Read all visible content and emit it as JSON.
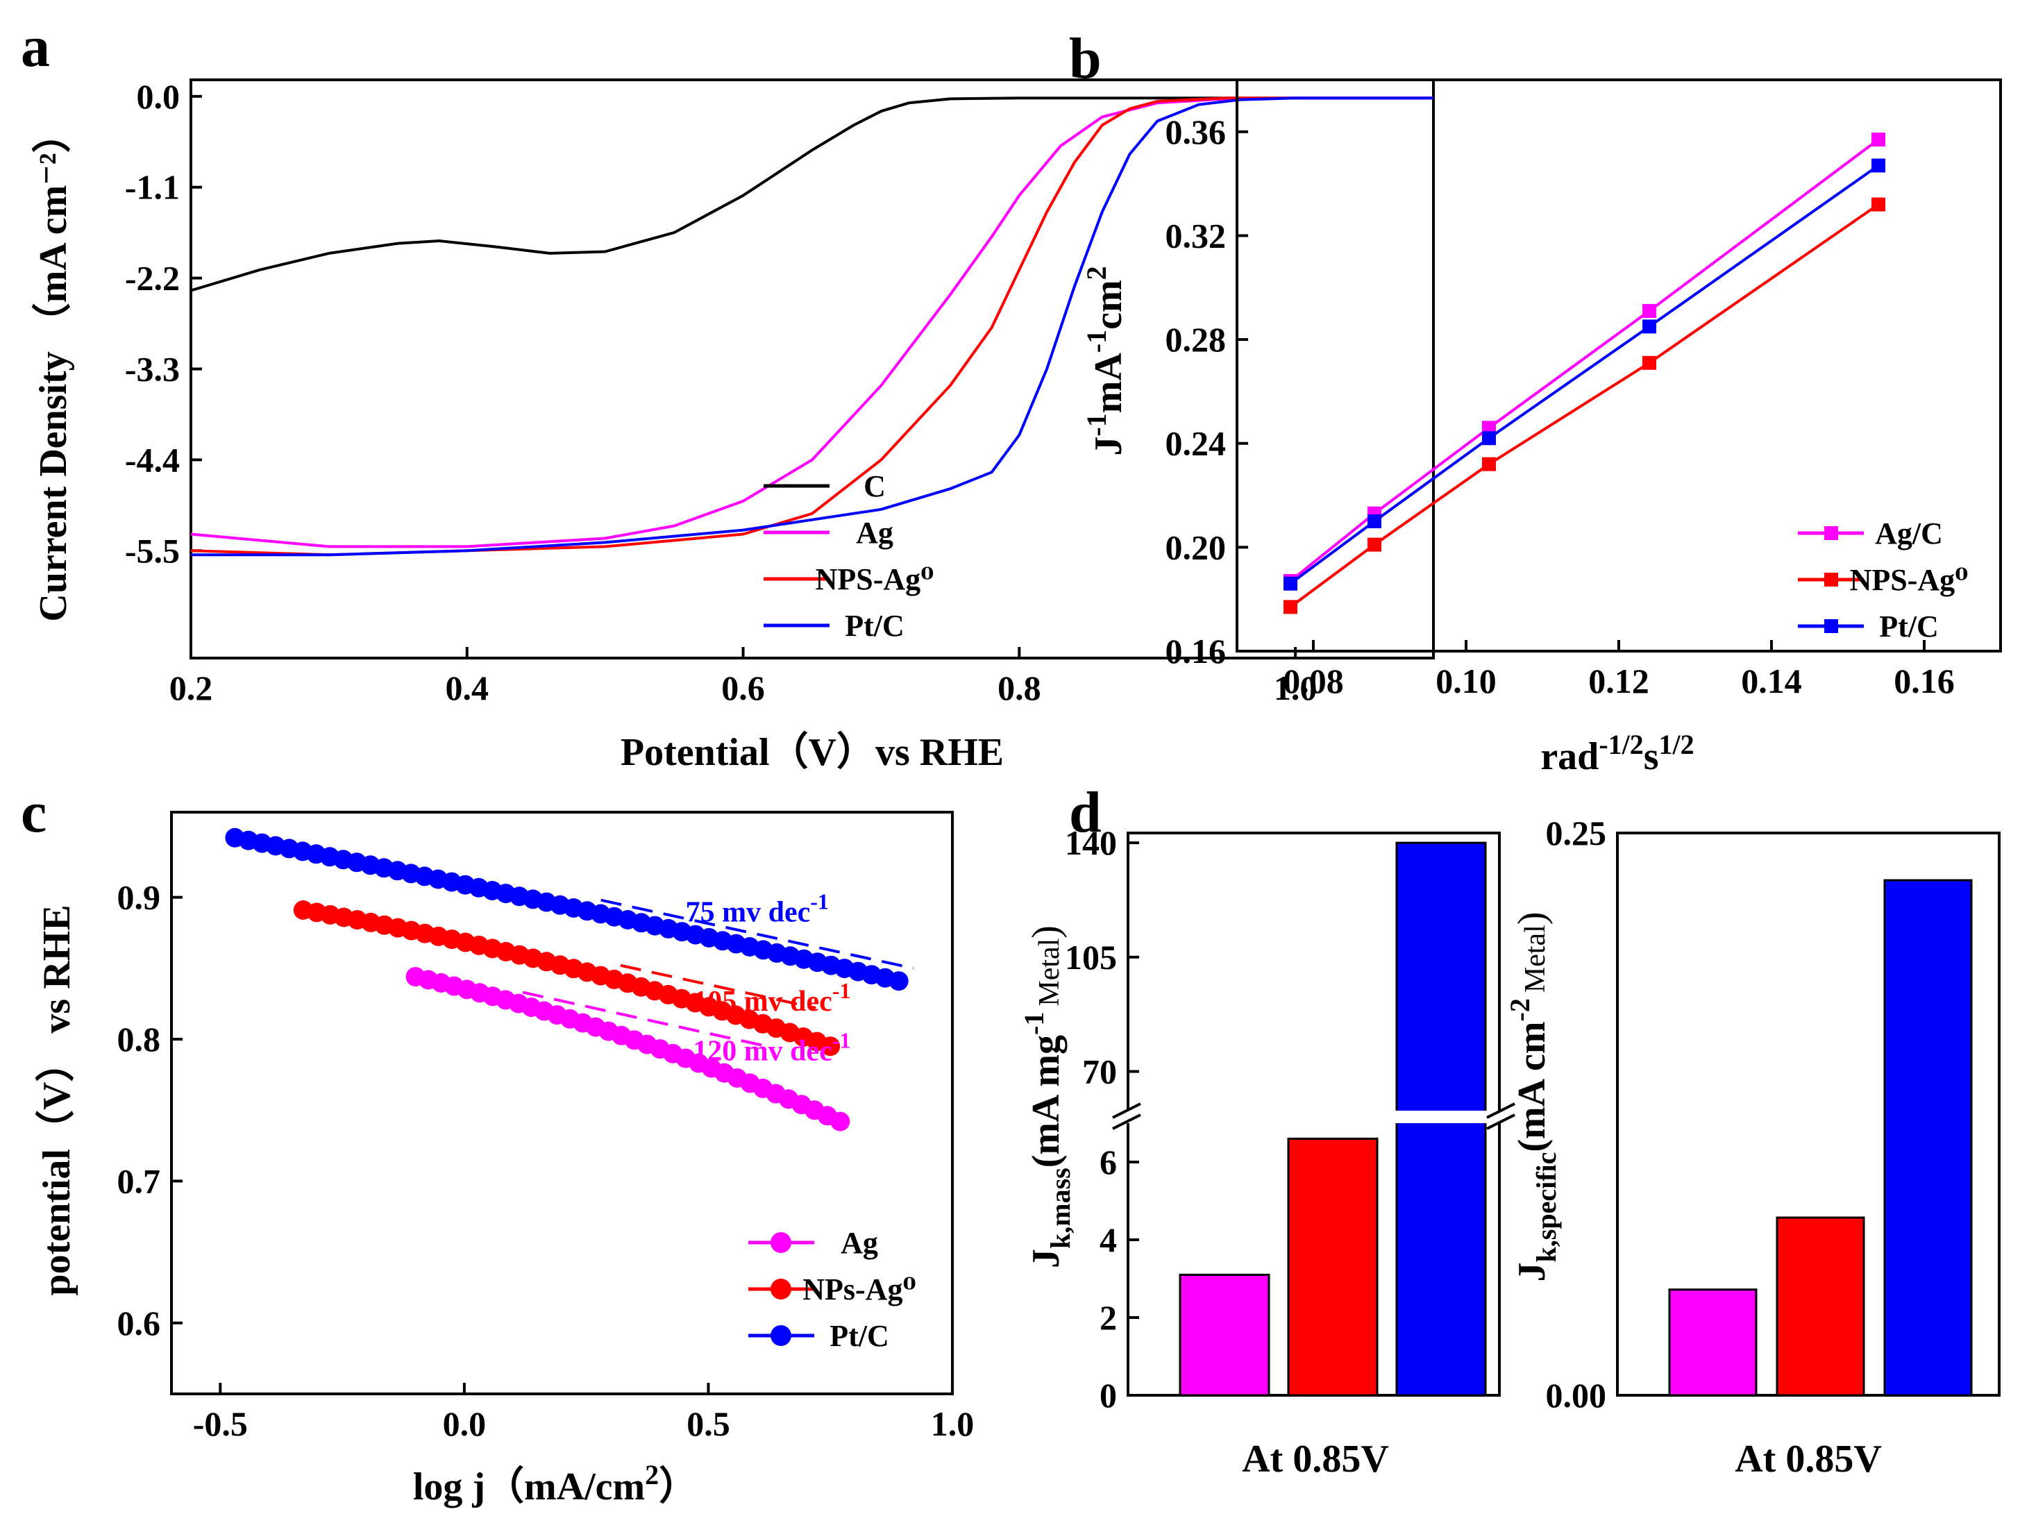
{
  "chart_data": [
    {
      "id": "a",
      "panel_label": "a",
      "type": "line",
      "xlabel": "Potential（V）vs RHE",
      "ylabel": "Current Density （mA cm⁻²）",
      "xlim": [
        0.2,
        1.1
      ],
      "ylim": [
        -6.8,
        0.2
      ],
      "xticks": [
        0.2,
        0.4,
        0.6,
        0.8,
        1.0
      ],
      "yticks": [
        0.0,
        -1.1,
        -2.2,
        -3.3,
        -4.4,
        -5.5
      ],
      "legend_position": "bottom-right",
      "series": [
        {
          "name": "C",
          "color": "#000000",
          "x": [
            0.2,
            0.25,
            0.3,
            0.35,
            0.38,
            0.42,
            0.46,
            0.5,
            0.55,
            0.6,
            0.65,
            0.68,
            0.7,
            0.72,
            0.75,
            0.8,
            0.9,
            1.0,
            1.1
          ],
          "y": [
            -2.35,
            -2.1,
            -1.9,
            -1.78,
            -1.75,
            -1.82,
            -1.9,
            -1.88,
            -1.65,
            -1.2,
            -0.65,
            -0.35,
            -0.18,
            -0.08,
            -0.03,
            -0.02,
            -0.02,
            -0.02,
            -0.02
          ]
        },
        {
          "name": "Ag",
          "color": "#ff00ff",
          "x": [
            0.2,
            0.3,
            0.4,
            0.5,
            0.55,
            0.6,
            0.65,
            0.7,
            0.75,
            0.78,
            0.8,
            0.83,
            0.86,
            0.9,
            0.95,
            1.0,
            1.1
          ],
          "y": [
            -5.3,
            -5.45,
            -5.45,
            -5.35,
            -5.2,
            -4.9,
            -4.4,
            -3.5,
            -2.4,
            -1.7,
            -1.2,
            -0.6,
            -0.25,
            -0.08,
            -0.03,
            -0.02,
            -0.02
          ]
        },
        {
          "name": "NPS-Ag⁰",
          "color": "#ff0000",
          "x": [
            0.2,
            0.3,
            0.4,
            0.5,
            0.6,
            0.65,
            0.7,
            0.75,
            0.78,
            0.8,
            0.82,
            0.84,
            0.86,
            0.88,
            0.9,
            0.95,
            1.0,
            1.1
          ],
          "y": [
            -5.5,
            -5.55,
            -5.5,
            -5.45,
            -5.3,
            -5.05,
            -4.4,
            -3.5,
            -2.8,
            -2.1,
            -1.4,
            -0.8,
            -0.35,
            -0.15,
            -0.06,
            -0.02,
            -0.02,
            -0.02
          ]
        },
        {
          "name": "Pt/C",
          "color": "#0000ff",
          "x": [
            0.2,
            0.3,
            0.4,
            0.5,
            0.6,
            0.7,
            0.75,
            0.78,
            0.8,
            0.82,
            0.84,
            0.86,
            0.88,
            0.9,
            0.93,
            0.96,
            1.0,
            1.1
          ],
          "y": [
            -5.55,
            -5.55,
            -5.5,
            -5.4,
            -5.25,
            -5.0,
            -4.75,
            -4.55,
            -4.1,
            -3.3,
            -2.3,
            -1.4,
            -0.7,
            -0.3,
            -0.1,
            -0.04,
            -0.02,
            -0.02
          ]
        }
      ]
    },
    {
      "id": "b",
      "panel_label": "b",
      "type": "line",
      "xlabel": "rad⁻¹ᐟ²s¹ᐟ²",
      "xlabel_base1": "rad",
      "xlabel_sup1": "-1/2",
      "xlabel_base2": "s",
      "xlabel_sup2": "1/2",
      "ylabel": "J⁻¹mA⁻¹cm²",
      "ylabel_base1": "J",
      "ylabel_sup1": "-1",
      "ylabel_base2": "mA",
      "ylabel_sup2": "-1",
      "ylabel_base3": "cm",
      "ylabel_sup3": "2",
      "xlim": [
        0.07,
        0.17
      ],
      "ylim": [
        0.16,
        0.38
      ],
      "xticks": [
        0.08,
        0.1,
        0.12,
        0.14,
        0.16
      ],
      "yticks": [
        0.16,
        0.2,
        0.24,
        0.28,
        0.32,
        0.36
      ],
      "tick_decimals": 2,
      "legend_position": "bottom-right",
      "x": [
        0.077,
        0.088,
        0.103,
        0.124,
        0.154
      ],
      "series": [
        {
          "name": "Ag/C",
          "color": "#ff00ff",
          "values": [
            0.187,
            0.213,
            0.246,
            0.291,
            0.357
          ]
        },
        {
          "name": "NPS-Ag⁰",
          "color": "#ff0000",
          "values": [
            0.177,
            0.201,
            0.232,
            0.271,
            0.332
          ]
        },
        {
          "name": "Pt/C",
          "color": "#0000ff",
          "values": [
            0.186,
            0.21,
            0.242,
            0.285,
            0.347
          ]
        }
      ]
    },
    {
      "id": "c",
      "panel_label": "c",
      "type": "scatter",
      "xlabel": "log j（mA/cm²）",
      "xlabel_base": "log j（mA/cm",
      "xlabel_sup": "2",
      "xlabel_end": "）",
      "ylabel": "potential（V） vs RHE",
      "xlim": [
        -0.6,
        1.0
      ],
      "ylim": [
        0.55,
        0.96
      ],
      "xticks": [
        -0.5,
        0.0,
        0.5,
        1.0
      ],
      "yticks": [
        0.6,
        0.7,
        0.8,
        0.9
      ],
      "legend_position": "bottom-right",
      "series": [
        {
          "name": "Ag",
          "color": "#ff00ff",
          "x_start": -0.1,
          "x_end": 0.77,
          "y_start": 0.844,
          "y_end": 0.742,
          "n_points": 34,
          "bow": 0.008
        },
        {
          "name": "NPs-Ag⁰",
          "color": "#ff0000",
          "x_start": -0.33,
          "x_end": 0.75,
          "y_start": 0.891,
          "y_end": 0.795,
          "n_points": 40,
          "bow": 0.008
        },
        {
          "name": "Pt/C",
          "color": "#0000ff",
          "x_start": -0.47,
          "x_end": 0.89,
          "y_start": 0.942,
          "y_end": 0.841,
          "n_points": 50,
          "bow": 0.002
        }
      ],
      "annotations": [
        {
          "text": "75 mv dec",
          "sup": "-1",
          "color": "#0000ff",
          "x": 0.6,
          "y": 0.883,
          "line_x": [
            0.28,
            0.92
          ],
          "line_y": [
            0.898,
            0.85
          ]
        },
        {
          "text": "105 mv dec",
          "sup": "-1",
          "color": "#ff0000",
          "x": 0.63,
          "y": 0.82,
          "line_x": [
            0.32,
            0.72
          ],
          "line_y": [
            0.852,
            0.822
          ]
        },
        {
          "text": "120 mv dec",
          "sup": "-1",
          "color": "#ff00ff",
          "x": 0.63,
          "y": 0.785,
          "line_x": [
            0.12,
            0.62
          ],
          "line_y": [
            0.833,
            0.795
          ]
        }
      ]
    },
    {
      "id": "d_left",
      "panel_label": "d",
      "type": "bar",
      "xlabel": "At 0.85V",
      "ylabel": "J k,mass (mA mg⁻¹ Metal)",
      "ylabel_base": "J",
      "ylabel_sub": "k,mass",
      "ylabel_mid": "(mA mg",
      "ylabel_sup": "-1",
      "ylabel_sub2": "Metal",
      "ylabel_end": ")",
      "axis_break": true,
      "lower_ylim": [
        0,
        7
      ],
      "upper_ylim": [
        58,
        143
      ],
      "lower_yticks": [
        0,
        2,
        4,
        6
      ],
      "upper_yticks": [
        70,
        105,
        140
      ],
      "values": [
        3.1,
        6.6,
        140
      ],
      "colors": [
        "#ff00ff",
        "#ff0000",
        "#0000ff"
      ]
    },
    {
      "id": "d_right",
      "type": "bar",
      "xlabel": "At 0.85V",
      "ylabel": "J k,specific (mA cm⁻² Metal)",
      "ylabel_base": "J",
      "ylabel_sub": "k,specific",
      "ylabel_mid": "(mA cm",
      "ylabel_sup": "-2",
      "ylabel_sub2": "Metal",
      "ylabel_end": ")",
      "ylim": [
        0,
        0.25
      ],
      "yticks": [
        0.0,
        0.25
      ],
      "tick_decimals": 2,
      "values": [
        0.047,
        0.079,
        0.229
      ],
      "colors": [
        "#ff00ff",
        "#ff0000",
        "#0000ff"
      ]
    }
  ]
}
